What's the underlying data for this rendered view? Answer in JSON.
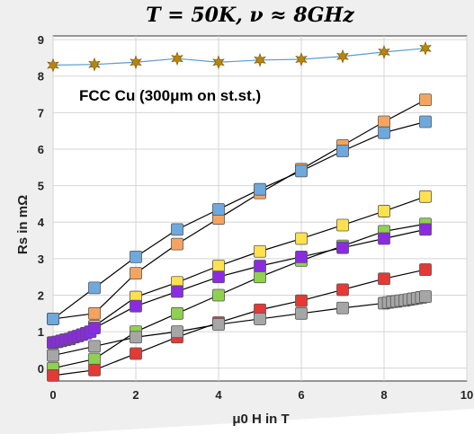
{
  "chart_data": {
    "type": "line",
    "title": "T = 50K, ν ≈ 8GHz",
    "annotation": "FCC Cu (300μm on st.st.)",
    "xlabel": "μ0 H in T",
    "ylabel": "Rs in mΩ",
    "xlim": [
      0,
      10
    ],
    "ylim": [
      -0.35,
      9.1
    ],
    "x_ticks": [
      "0",
      "2",
      "4",
      "6",
      "8",
      "10"
    ],
    "y_ticks": [
      "0",
      "1",
      "2",
      "3",
      "4",
      "5",
      "6",
      "7",
      "8",
      "9"
    ],
    "grid": true,
    "colors": {
      "background": "#f0f0f0",
      "plot_background": "#ffffff",
      "grid": "#d4d4d4",
      "axis": "#333333"
    },
    "series": [
      {
        "color": "#b8860b",
        "line_color": "#5b9bd5",
        "marker": "star",
        "x": [
          0,
          1,
          2,
          3,
          4,
          5,
          6,
          7,
          8,
          9
        ],
        "y": [
          8.3,
          8.32,
          8.38,
          8.48,
          8.38,
          8.44,
          8.46,
          8.54,
          8.66,
          8.76
        ]
      },
      {
        "color": "#f4a460",
        "line_color": "#000000",
        "marker": "square",
        "x": [
          0,
          1,
          2,
          3,
          4,
          5,
          6,
          7,
          8,
          9
        ],
        "y": [
          1.35,
          1.5,
          2.6,
          3.4,
          4.1,
          4.8,
          5.45,
          6.1,
          6.75,
          7.35
        ]
      },
      {
        "color": "#6fa8dc",
        "line_color": "#000000",
        "marker": "square",
        "x": [
          0,
          1,
          2,
          3,
          4,
          5,
          6,
          7,
          8,
          9
        ],
        "y": [
          1.35,
          2.2,
          3.05,
          3.8,
          4.35,
          4.9,
          5.4,
          5.95,
          6.45,
          6.75
        ]
      },
      {
        "color": "#ffe14d",
        "line_color": "#000000",
        "marker": "square",
        "x": [
          0,
          1,
          2,
          3,
          4,
          5,
          6,
          7,
          8,
          9
        ],
        "y": [
          0.7,
          1.15,
          1.95,
          2.35,
          2.8,
          3.2,
          3.55,
          3.92,
          4.3,
          4.7
        ]
      },
      {
        "color": "#8fd14f",
        "line_color": "#000000",
        "marker": "square",
        "x": [
          0,
          1,
          2,
          3,
          4,
          5,
          6,
          7,
          8,
          9
        ],
        "y": [
          0.0,
          0.25,
          1.0,
          1.5,
          2.0,
          2.5,
          2.95,
          3.35,
          3.75,
          3.95
        ]
      },
      {
        "color": "#8a2be2",
        "line_color": "#000000",
        "marker": "square",
        "x": [
          0,
          0.1,
          0.2,
          0.3,
          0.4,
          0.5,
          0.6,
          0.7,
          0.8,
          0.9,
          1,
          2,
          3,
          4,
          5,
          6,
          7,
          8,
          9
        ],
        "y": [
          0.7,
          0.72,
          0.75,
          0.78,
          0.8,
          0.85,
          0.88,
          0.92,
          0.96,
          1.0,
          1.1,
          1.7,
          2.1,
          2.5,
          2.8,
          3.05,
          3.3,
          3.55,
          3.8
        ]
      },
      {
        "color": "#e53935",
        "line_color": "#000000",
        "marker": "square",
        "x": [
          0,
          1,
          2,
          3,
          4,
          5,
          6,
          7,
          8,
          9
        ],
        "y": [
          -0.2,
          -0.05,
          0.4,
          0.85,
          1.25,
          1.6,
          1.85,
          2.15,
          2.45,
          2.7
        ]
      },
      {
        "color": "#a6a6a6",
        "line_color": "#000000",
        "marker": "square",
        "x": [
          0,
          1,
          2,
          3,
          4,
          5,
          6,
          7,
          8,
          8.1,
          8.2,
          8.3,
          8.4,
          8.5,
          8.6,
          8.7,
          8.8,
          8.9,
          9
        ],
        "y": [
          0.35,
          0.6,
          0.85,
          1.0,
          1.2,
          1.35,
          1.5,
          1.65,
          1.78,
          1.8,
          1.82,
          1.83,
          1.85,
          1.86,
          1.88,
          1.9,
          1.92,
          1.94,
          1.96
        ]
      }
    ]
  }
}
